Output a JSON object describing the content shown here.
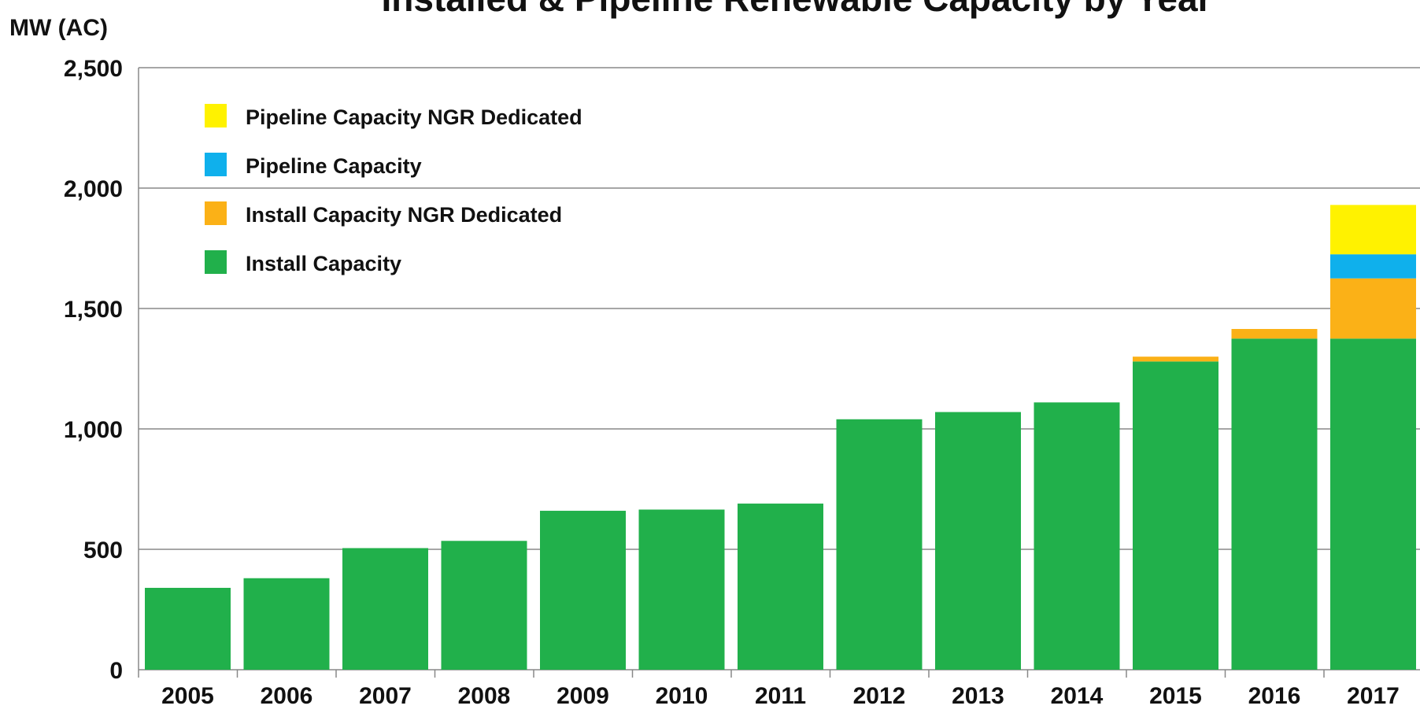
{
  "chart_data": {
    "type": "stacked_bar",
    "title": "Installed & Pipeline Renewable Capacity by Year",
    "y_label": "MW (AC)",
    "categories": [
      "2005",
      "2006",
      "2007",
      "2008",
      "2009",
      "2010",
      "2011",
      "2012",
      "2013",
      "2014",
      "2015",
      "2016",
      "2017"
    ],
    "series": [
      {
        "name": "Install Capacity",
        "color": "#21b04b",
        "values": [
          340,
          380,
          505,
          535,
          660,
          665,
          690,
          1040,
          1070,
          1110,
          1280,
          1375,
          1375
        ]
      },
      {
        "name": "Install Capacity NGR Dedicated",
        "color": "#fbb117",
        "values": [
          0,
          0,
          0,
          0,
          0,
          0,
          0,
          0,
          0,
          0,
          20,
          40,
          250
        ]
      },
      {
        "name": "Pipeline Capacity",
        "color": "#0fb0ec",
        "values": [
          0,
          0,
          0,
          0,
          0,
          0,
          0,
          0,
          0,
          0,
          0,
          0,
          100
        ]
      },
      {
        "name": "Pipeline Capacity NGR Dedicated",
        "color": "#fff200",
        "values": [
          0,
          0,
          0,
          0,
          0,
          0,
          0,
          0,
          0,
          0,
          0,
          0,
          205
        ]
      }
    ],
    "ylim": [
      0,
      2500
    ],
    "yticks": [
      0,
      500,
      {
        "value": 1000,
        "label": "1,000"
      },
      {
        "value": 1500,
        "label": "1,500"
      },
      {
        "value": 2000,
        "label": "2,000"
      },
      {
        "value": 2500,
        "label": "2,500"
      }
    ],
    "grid": true,
    "legend": "upper left"
  }
}
